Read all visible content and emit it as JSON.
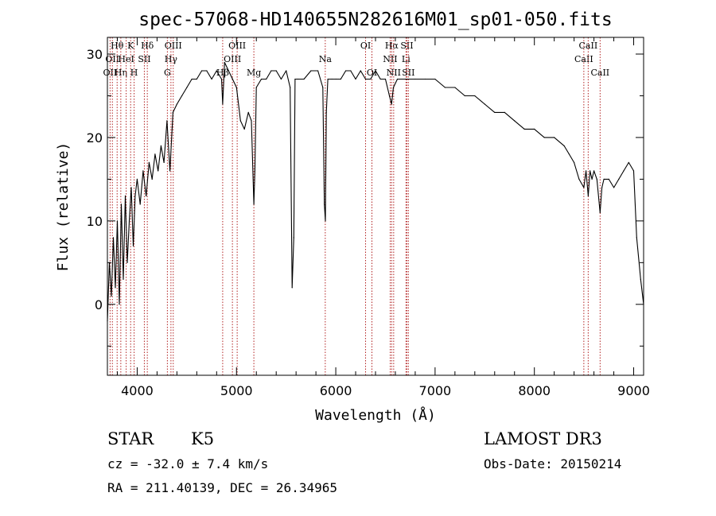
{
  "chart_data": {
    "type": "line",
    "title": "spec-57068-HD140655N282616M01_sp01-050.fits",
    "xlabel": "Wavelength (Å)",
    "ylabel": "Flux (relative)",
    "xlim": [
      3700,
      9100
    ],
    "ylim": [
      -8.5,
      32
    ],
    "xticks": [
      4000,
      5000,
      6000,
      7000,
      8000,
      9000
    ],
    "yticks": [
      0,
      10,
      20,
      30
    ],
    "line_color": "#000000",
    "marker_color": "#b22222",
    "series": [
      {
        "name": "flux",
        "x": [
          3700,
          3720,
          3740,
          3760,
          3780,
          3800,
          3820,
          3840,
          3860,
          3880,
          3900,
          3920,
          3940,
          3960,
          3980,
          4000,
          4030,
          4060,
          4090,
          4120,
          4150,
          4180,
          4210,
          4240,
          4270,
          4300,
          4330,
          4360,
          4400,
          4450,
          4500,
          4550,
          4600,
          4650,
          4700,
          4750,
          4800,
          4850,
          4861,
          4880,
          4920,
          4960,
          5000,
          5040,
          5080,
          5120,
          5150,
          5175,
          5185,
          5200,
          5250,
          5300,
          5350,
          5400,
          5450,
          5500,
          5540,
          5560,
          5577,
          5590,
          5620,
          5680,
          5750,
          5820,
          5870,
          5885,
          5895,
          5905,
          5920,
          5960,
          6000,
          6050,
          6100,
          6150,
          6200,
          6250,
          6300,
          6350,
          6400,
          6450,
          6500,
          6540,
          6562,
          6580,
          6620,
          6700,
          6800,
          6900,
          7000,
          7100,
          7200,
          7300,
          7400,
          7500,
          7600,
          7700,
          7800,
          7900,
          8000,
          8100,
          8200,
          8300,
          8350,
          8400,
          8450,
          8498,
          8520,
          8542,
          8560,
          8580,
          8600,
          8630,
          8662,
          8680,
          8700,
          8750,
          8800,
          8850,
          8900,
          8950,
          9000,
          9030,
          9070,
          9100
        ],
        "y": [
          -2,
          5,
          1,
          8,
          2,
          10,
          0,
          12,
          3,
          13,
          5,
          10,
          14,
          7,
          13,
          15,
          12,
          16,
          13,
          17,
          15,
          18,
          16,
          19,
          17,
          22,
          16,
          23,
          24,
          25,
          26,
          27,
          27,
          28,
          28,
          27,
          28,
          27,
          24,
          29,
          28,
          27,
          26,
          22,
          21,
          23,
          22,
          12,
          16,
          26,
          27,
          27,
          28,
          28,
          27,
          28,
          26,
          2,
          8,
          27,
          27,
          27,
          28,
          28,
          26,
          12,
          10,
          23,
          27,
          27,
          27,
          27,
          28,
          28,
          27,
          28,
          27,
          27,
          28,
          27,
          27,
          25,
          24,
          26,
          27,
          27,
          27,
          27,
          27,
          26,
          26,
          25,
          25,
          24,
          23,
          23,
          22,
          21,
          21,
          20,
          20,
          19,
          18,
          17,
          15,
          14,
          16,
          13,
          16,
          15,
          16,
          15,
          11,
          14,
          15,
          15,
          14,
          15,
          16,
          17,
          16,
          8,
          3,
          0
        ]
      }
    ],
    "line_markers": [
      {
        "wavelength": 3727,
        "label": "OII",
        "level": 2
      },
      {
        "wavelength": 3750,
        "label": "OII",
        "level": 1
      },
      {
        "wavelength": 3798,
        "label": "Hθ",
        "level": 0
      },
      {
        "wavelength": 3835,
        "label": "Hη",
        "level": 2
      },
      {
        "wavelength": 3889,
        "label": "HeI",
        "level": 1
      },
      {
        "wavelength": 3934,
        "label": "K",
        "level": 0
      },
      {
        "wavelength": 3969,
        "label": "H",
        "level": 2
      },
      {
        "wavelength": 4072,
        "label": "SII",
        "level": 1
      },
      {
        "wavelength": 4102,
        "label": "Hδ",
        "level": 0
      },
      {
        "wavelength": 4304,
        "label": "G",
        "level": 2
      },
      {
        "wavelength": 4340,
        "label": "Hγ",
        "level": 1
      },
      {
        "wavelength": 4363,
        "label": "OIII",
        "level": 0
      },
      {
        "wavelength": 4861,
        "label": "Hβ",
        "level": 2
      },
      {
        "wavelength": 4959,
        "label": "OIII",
        "level": 1
      },
      {
        "wavelength": 5007,
        "label": "OIII",
        "level": 0
      },
      {
        "wavelength": 5175,
        "label": "Mg",
        "level": 2
      },
      {
        "wavelength": 5894,
        "label": "Na",
        "level": 1
      },
      {
        "wavelength": 6300,
        "label": "OI",
        "level": 0
      },
      {
        "wavelength": 6364,
        "label": "OI",
        "level": 2
      },
      {
        "wavelength": 6548,
        "label": "NII",
        "level": 1
      },
      {
        "wavelength": 6563,
        "label": "Hα",
        "level": 0
      },
      {
        "wavelength": 6583,
        "label": "NII",
        "level": 2
      },
      {
        "wavelength": 6707,
        "label": "Li",
        "level": 1
      },
      {
        "wavelength": 6716,
        "label": "SII",
        "level": 0
      },
      {
        "wavelength": 6731,
        "label": "SII",
        "level": 2
      },
      {
        "wavelength": 8498,
        "label": "CaII",
        "level": 1
      },
      {
        "wavelength": 8542,
        "label": "CaII",
        "level": 0
      },
      {
        "wavelength": 8662,
        "label": "CaII",
        "level": 2
      }
    ]
  },
  "info": {
    "class": "STAR",
    "subclass": "K5",
    "survey": "LAMOST DR3",
    "redshift": "cz = -32.0 ± 7.4 km/s",
    "obs_date": "Obs-Date: 20150214",
    "coords": "RA = 211.40139, DEC =  26.34965"
  }
}
